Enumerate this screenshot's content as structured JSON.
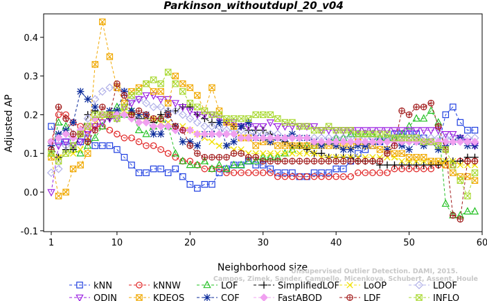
{
  "chart_data": {
    "type": "line",
    "title": "Parkinson_withoutdupl_20_v04",
    "xlabel": "Neighborhood size",
    "ylabel": "Adjusted AP",
    "xlim": [
      1,
      60
    ],
    "ylim": [
      -0.1,
      0.45
    ],
    "xticks": [
      1,
      10,
      20,
      30,
      40,
      50,
      60
    ],
    "yticks": [
      -0.1,
      0.0,
      0.1,
      0.2,
      0.3,
      0.4
    ],
    "grid": false,
    "legend_position": "bottom",
    "watermark": [
      "Unsupervised Outlier Detection. DAMI, 2015.",
      "Campos, Zimek, Sander, Campello, Micenkova, Schubert, Assent, Houle"
    ],
    "x": [
      1,
      2,
      3,
      4,
      5,
      6,
      7,
      8,
      9,
      10,
      11,
      12,
      13,
      14,
      15,
      16,
      17,
      18,
      19,
      20,
      21,
      22,
      23,
      24,
      25,
      26,
      27,
      28,
      29,
      30,
      31,
      32,
      33,
      34,
      35,
      36,
      37,
      38,
      39,
      40,
      41,
      42,
      43,
      44,
      45,
      46,
      47,
      48,
      49,
      50,
      51,
      52,
      53,
      54,
      55,
      56,
      57,
      58,
      59
    ],
    "series": [
      {
        "name": "kNN",
        "color": "#1f3fe0",
        "marker": "square",
        "values": [
          0.17,
          0.13,
          0.13,
          0.12,
          0.13,
          0.14,
          0.12,
          0.12,
          0.12,
          0.11,
          0.09,
          0.07,
          0.05,
          0.05,
          0.06,
          0.06,
          0.05,
          0.06,
          0.04,
          0.02,
          0.01,
          0.02,
          0.02,
          0.05,
          0.06,
          0.07,
          0.07,
          0.08,
          0.07,
          0.07,
          0.06,
          0.05,
          0.05,
          0.05,
          0.04,
          0.04,
          0.05,
          0.05,
          0.05,
          0.06,
          0.06,
          0.08,
          0.1,
          0.11,
          0.12,
          0.13,
          0.14,
          0.15,
          0.15,
          0.15,
          0.15,
          0.14,
          0.13,
          0.12,
          0.2,
          0.22,
          0.18,
          0.16,
          0.16
        ]
      },
      {
        "name": "kNNW",
        "color": "#e02020",
        "marker": "circle",
        "values": [
          0.13,
          0.2,
          0.2,
          0.18,
          0.17,
          0.16,
          0.17,
          0.17,
          0.16,
          0.15,
          0.14,
          0.14,
          0.13,
          0.12,
          0.12,
          0.11,
          0.1,
          0.09,
          0.08,
          0.08,
          0.07,
          0.06,
          0.06,
          0.06,
          0.05,
          0.05,
          0.05,
          0.05,
          0.05,
          0.05,
          0.05,
          0.04,
          0.04,
          0.04,
          0.04,
          0.04,
          0.04,
          0.04,
          0.04,
          0.04,
          0.04,
          0.04,
          0.05,
          0.05,
          0.05,
          0.05,
          0.05,
          0.06,
          0.06,
          0.06,
          0.06,
          0.06,
          0.06,
          0.07,
          0.07,
          0.07,
          0.08,
          0.08,
          0.08
        ]
      },
      {
        "name": "LOF",
        "color": "#22c022",
        "marker": "triangle-up",
        "values": [
          0.1,
          0.18,
          0.17,
          0.11,
          0.1,
          0.12,
          0.14,
          0.17,
          0.2,
          0.22,
          0.2,
          0.21,
          0.16,
          0.15,
          0.17,
          0.19,
          0.17,
          0.1,
          0.08,
          0.07,
          0.07,
          0.08,
          0.06,
          0.07,
          0.06,
          0.07,
          0.07,
          0.08,
          0.08,
          0.09,
          0.09,
          0.09,
          0.1,
          0.11,
          0.12,
          0.12,
          0.12,
          0.13,
          0.13,
          0.14,
          0.14,
          0.15,
          0.15,
          0.15,
          0.15,
          0.14,
          0.14,
          0.14,
          0.15,
          0.17,
          0.19,
          0.19,
          0.21,
          0.18,
          -0.03,
          -0.06,
          -0.06,
          -0.05,
          -0.05
        ]
      },
      {
        "name": "SimplifiedLOF",
        "color": "#000000",
        "marker": "plus",
        "values": [
          0.12,
          0.09,
          0.11,
          0.11,
          0.15,
          0.2,
          0.21,
          0.2,
          0.19,
          0.2,
          0.2,
          0.2,
          0.19,
          0.19,
          0.18,
          0.2,
          0.21,
          0.21,
          0.22,
          0.22,
          0.2,
          0.19,
          0.18,
          0.18,
          0.18,
          0.17,
          0.17,
          0.16,
          0.16,
          0.16,
          0.15,
          0.14,
          0.13,
          0.12,
          0.12,
          0.11,
          0.1,
          0.1,
          0.09,
          0.09,
          0.09,
          0.09,
          0.08,
          0.08,
          0.08,
          0.07,
          0.07,
          0.07,
          0.07,
          0.07,
          0.07,
          0.07,
          0.07,
          0.07,
          0.08,
          0.08,
          0.08,
          0.09,
          0.09
        ]
      },
      {
        "name": "LoOP",
        "color": "#f0e000",
        "marker": "x",
        "values": [
          0.1,
          0.09,
          0.1,
          0.1,
          0.11,
          0.14,
          0.18,
          0.19,
          0.2,
          0.21,
          0.21,
          0.2,
          0.2,
          0.19,
          0.19,
          0.18,
          0.18,
          0.17,
          0.17,
          0.16,
          0.15,
          0.14,
          0.13,
          0.12,
          0.12,
          0.11,
          0.11,
          0.1,
          0.1,
          0.1,
          0.1,
          0.1,
          0.1,
          0.1,
          0.1,
          0.1,
          0.1,
          0.09,
          0.09,
          0.09,
          0.09,
          0.09,
          0.09,
          0.09,
          0.09,
          0.09,
          0.09,
          0.09,
          0.08,
          0.08,
          0.08,
          0.08,
          0.08,
          0.08,
          0.08,
          0.08,
          0.07,
          0.07,
          0.07
        ]
      },
      {
        "name": "LDOF",
        "color": "#b0b0e8",
        "marker": "diamond",
        "values": [
          0.05,
          0.06,
          0.12,
          0.15,
          0.15,
          0.19,
          0.24,
          0.26,
          0.27,
          0.27,
          0.26,
          0.24,
          0.24,
          0.23,
          0.22,
          0.22,
          0.21,
          0.21,
          0.2,
          0.19,
          0.18,
          0.17,
          0.17,
          0.17,
          0.16,
          0.16,
          0.16,
          0.15,
          0.15,
          0.15,
          0.15,
          0.15,
          0.14,
          0.14,
          0.14,
          0.14,
          0.14,
          0.14,
          0.14,
          0.14,
          0.14,
          0.14,
          0.14,
          0.14,
          0.14,
          0.14,
          0.14,
          0.14,
          0.14,
          0.14,
          0.14,
          0.14,
          0.14,
          0.14,
          0.14,
          0.14,
          0.14,
          0.14,
          0.14
        ]
      },
      {
        "name": "ODIN",
        "color": "#9a1fe0",
        "marker": "triangle-down",
        "values": [
          0.0,
          0.12,
          0.13,
          0.12,
          0.13,
          0.15,
          0.17,
          0.18,
          0.19,
          0.19,
          0.22,
          0.23,
          0.24,
          0.25,
          0.25,
          0.24,
          0.24,
          0.23,
          0.22,
          0.21,
          0.2,
          0.2,
          0.2,
          0.19,
          0.18,
          0.18,
          0.17,
          0.17,
          0.17,
          0.17,
          0.18,
          0.17,
          0.17,
          0.17,
          0.17,
          0.17,
          0.17,
          0.16,
          0.16,
          0.16,
          0.16,
          0.16,
          0.16,
          0.16,
          0.16,
          0.16,
          0.16,
          0.16,
          0.16,
          0.16,
          0.16,
          0.16,
          0.16,
          0.16,
          0.15,
          0.15,
          0.14,
          0.13,
          0.12
        ]
      },
      {
        "name": "KDEOS",
        "color": "#f0a800",
        "marker": "square-x",
        "values": [
          0.09,
          -0.01,
          0.0,
          0.06,
          0.07,
          0.1,
          0.33,
          0.44,
          0.35,
          0.27,
          0.23,
          0.26,
          0.27,
          0.28,
          0.26,
          0.26,
          0.23,
          0.3,
          0.28,
          0.27,
          0.25,
          0.21,
          0.27,
          0.21,
          0.18,
          0.17,
          0.14,
          0.14,
          0.12,
          0.13,
          0.13,
          0.12,
          0.12,
          0.12,
          0.12,
          0.12,
          0.12,
          0.12,
          0.12,
          0.12,
          0.12,
          0.12,
          0.13,
          0.12,
          0.12,
          0.11,
          0.11,
          0.1,
          0.1,
          0.09,
          0.09,
          0.09,
          0.08,
          0.08,
          0.07,
          0.05,
          0.04,
          0.04,
          0.03
        ]
      },
      {
        "name": "COF",
        "color": "#0a2a9a",
        "marker": "asterisk",
        "values": [
          0.12,
          0.15,
          0.16,
          0.18,
          0.26,
          0.24,
          0.22,
          0.2,
          0.21,
          0.21,
          0.26,
          0.21,
          0.2,
          0.2,
          0.15,
          0.15,
          0.2,
          0.17,
          0.13,
          0.13,
          0.12,
          0.15,
          0.15,
          0.18,
          0.12,
          0.13,
          0.17,
          0.18,
          0.14,
          0.14,
          0.13,
          0.14,
          0.14,
          0.15,
          0.14,
          0.14,
          0.13,
          0.12,
          0.13,
          0.12,
          0.11,
          0.11,
          0.12,
          0.12,
          0.13,
          0.13,
          0.11,
          0.13,
          0.12,
          0.11,
          0.13,
          0.12,
          0.13,
          0.11,
          0.12,
          0.13,
          0.14,
          0.12,
          0.12
        ]
      },
      {
        "name": "FastABOD",
        "color": "#f0a0f0",
        "marker": "diamond-filled",
        "values": [
          0.13,
          0.14,
          0.15,
          0.14,
          0.16,
          0.17,
          0.19,
          0.2,
          0.2,
          0.2,
          0.2,
          0.19,
          0.18,
          0.18,
          0.17,
          0.17,
          0.17,
          0.16,
          0.16,
          0.16,
          0.15,
          0.15,
          0.15,
          0.15,
          0.15,
          0.15,
          0.14,
          0.14,
          0.14,
          0.14,
          0.14,
          0.14,
          0.14,
          0.14,
          0.14,
          0.14,
          0.13,
          0.13,
          0.13,
          0.13,
          0.13,
          0.13,
          0.13,
          0.13,
          0.13,
          0.13,
          0.13,
          0.13,
          0.13,
          0.13,
          0.13,
          0.13,
          0.13,
          0.13,
          0.13,
          0.13,
          0.13,
          0.13,
          0.13
        ]
      },
      {
        "name": "LDF",
        "color": "#a01818",
        "marker": "circle-plus",
        "values": [
          0.11,
          0.22,
          0.19,
          0.15,
          0.15,
          0.13,
          0.16,
          0.22,
          0.2,
          0.28,
          0.25,
          0.2,
          0.21,
          0.2,
          0.19,
          0.19,
          0.2,
          0.17,
          0.16,
          0.12,
          0.1,
          0.09,
          0.09,
          0.09,
          0.09,
          0.1,
          0.1,
          0.09,
          0.09,
          0.08,
          0.08,
          0.08,
          0.08,
          0.08,
          0.08,
          0.08,
          0.08,
          0.08,
          0.08,
          0.08,
          0.08,
          0.08,
          0.08,
          0.08,
          0.08,
          0.08,
          0.1,
          0.12,
          0.21,
          0.2,
          0.22,
          0.22,
          0.23,
          0.17,
          0.11,
          -0.06,
          -0.07,
          0.08,
          0.08
        ]
      },
      {
        "name": "INFLO",
        "color": "#a8d830",
        "marker": "square-x",
        "values": [
          0.1,
          0.08,
          0.1,
          0.12,
          0.15,
          0.17,
          0.2,
          0.2,
          0.2,
          0.19,
          0.22,
          0.25,
          0.26,
          0.28,
          0.29,
          0.28,
          0.31,
          0.28,
          0.26,
          0.23,
          0.22,
          0.21,
          0.2,
          0.2,
          0.19,
          0.19,
          0.19,
          0.19,
          0.2,
          0.2,
          0.2,
          0.19,
          0.18,
          0.18,
          0.17,
          0.17,
          0.16,
          0.16,
          0.17,
          0.16,
          0.16,
          0.16,
          0.15,
          0.15,
          0.15,
          0.15,
          0.15,
          0.14,
          0.14,
          0.14,
          0.14,
          0.13,
          0.13,
          0.12,
          0.11,
          0.07,
          0.03,
          -0.01,
          0.05
        ]
      }
    ]
  }
}
